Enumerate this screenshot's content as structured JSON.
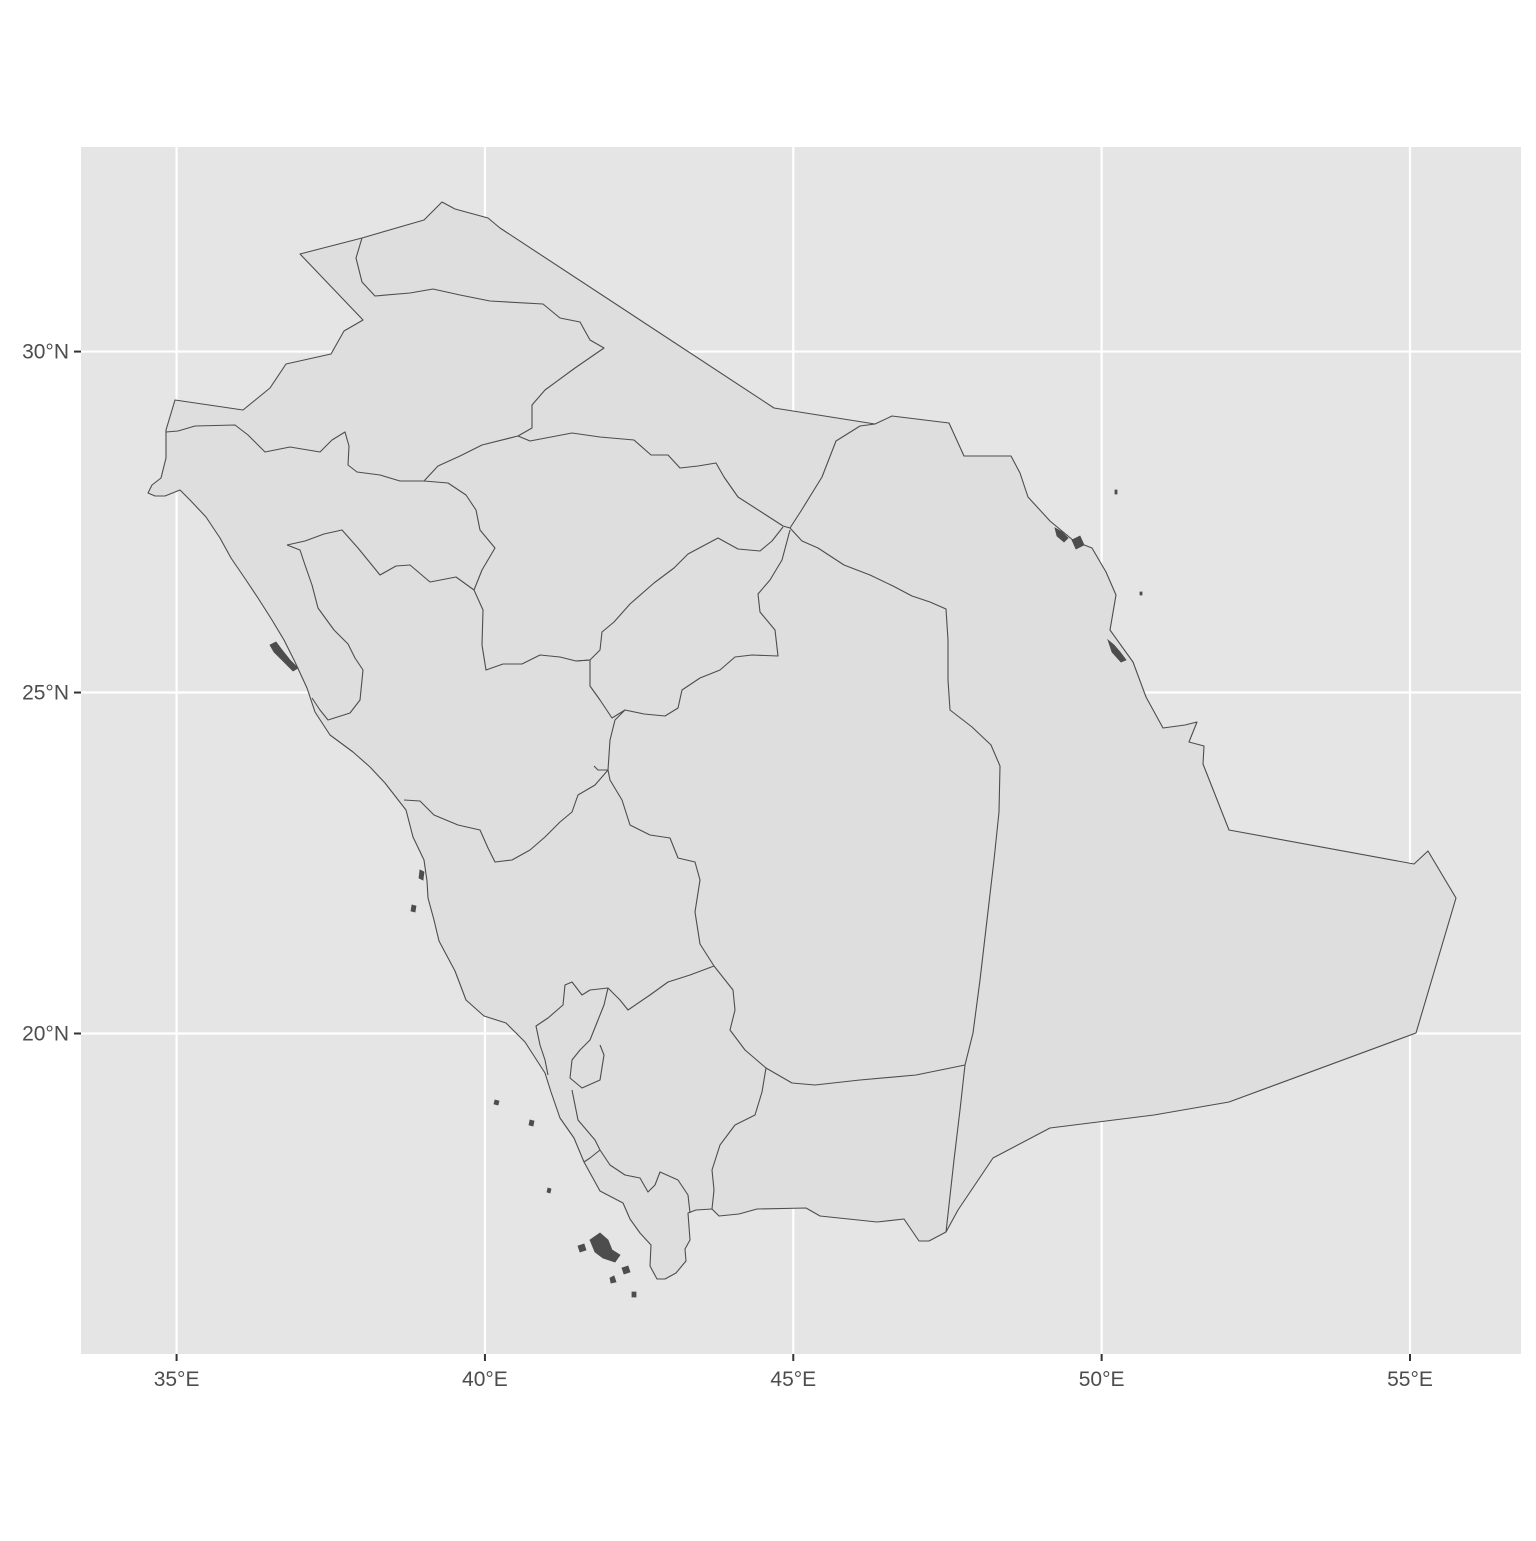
{
  "chart_data": {
    "type": "map",
    "title": "",
    "xlabel": "",
    "ylabel": "",
    "xlim": [
      33.45,
      56.8
    ],
    "ylim": [
      15.3,
      33.0
    ],
    "grid": true,
    "panel_background": "#e5e5e5",
    "grid_color": "#ffffff",
    "land_fill": "#dedede",
    "border_color": "#4d4d4d",
    "x_ticks": [
      {
        "value": 35,
        "label": "35°E"
      },
      {
        "value": 40,
        "label": "40°E"
      },
      {
        "value": 45,
        "label": "45°E"
      },
      {
        "value": 50,
        "label": "50°E"
      },
      {
        "value": 55,
        "label": "55°E"
      }
    ],
    "y_ticks": [
      {
        "value": 20,
        "label": "20°N"
      },
      {
        "value": 25,
        "label": "25°N"
      },
      {
        "value": 30,
        "label": "30°N"
      }
    ]
  }
}
